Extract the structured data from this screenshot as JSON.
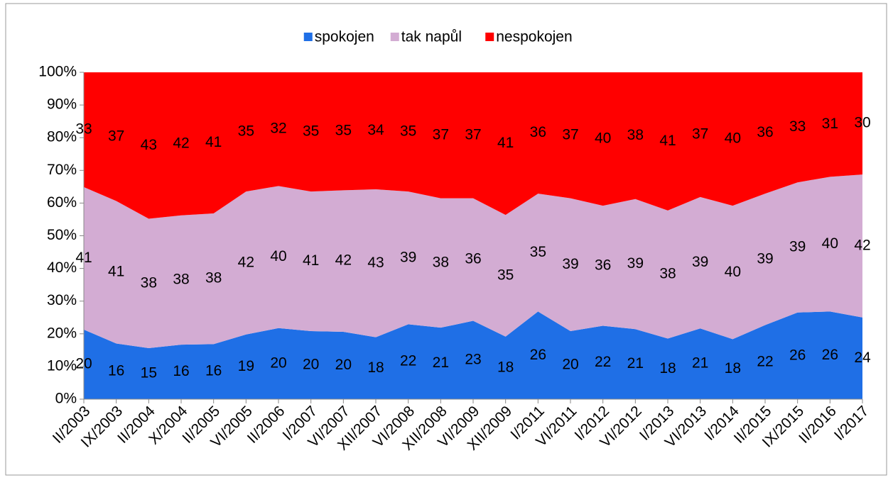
{
  "chart_data": {
    "type": "stacked_area_percent",
    "categories": [
      "II/2003",
      "IX/2003",
      "II/2004",
      "X/2004",
      "II/2005",
      "VI/2005",
      "II/2006",
      "I/2007",
      "VI/2007",
      "XII/2007",
      "VI/2008",
      "XII/2008",
      "VI/2009",
      "XII/2009",
      "I/2011",
      "VI/2011",
      "I/2012",
      "VI/2012",
      "I/2013",
      "VI/2013",
      "I/2014",
      "II/2015",
      "IX/2015",
      "II/2016",
      "I/2017"
    ],
    "series": [
      {
        "name": "spokojen",
        "color": "#1f6fe6",
        "values": [
          20,
          16,
          15,
          16,
          16,
          19,
          20,
          20,
          20,
          18,
          22,
          21,
          23,
          18,
          26,
          20,
          22,
          21,
          18,
          21,
          18,
          22,
          26,
          26,
          24
        ]
      },
      {
        "name": "tak napůl",
        "color": "#d3acd3",
        "values": [
          41,
          41,
          38,
          38,
          38,
          42,
          40,
          41,
          42,
          43,
          39,
          38,
          36,
          35,
          35,
          39,
          36,
          39,
          38,
          39,
          40,
          39,
          39,
          40,
          42
        ]
      },
      {
        "name": "nespokojen",
        "color": "#ff0000",
        "values": [
          33,
          37,
          43,
          42,
          41,
          35,
          32,
          35,
          35,
          34,
          35,
          37,
          37,
          41,
          36,
          37,
          40,
          38,
          41,
          37,
          40,
          36,
          33,
          31,
          30
        ]
      }
    ],
    "ylim": [
      0,
      100
    ],
    "yticks": [
      {
        "value": 0,
        "label": "0%"
      },
      {
        "value": 10,
        "label": "10%"
      },
      {
        "value": 20,
        "label": "20%"
      },
      {
        "value": 30,
        "label": "30%"
      },
      {
        "value": 40,
        "label": "40%"
      },
      {
        "value": 50,
        "label": "50%"
      },
      {
        "value": 60,
        "label": "60%"
      },
      {
        "value": 70,
        "label": "70%"
      },
      {
        "value": 80,
        "label": "80%"
      },
      {
        "value": 90,
        "label": "90%"
      },
      {
        "value": 100,
        "label": "100%"
      }
    ],
    "legend": "top"
  }
}
